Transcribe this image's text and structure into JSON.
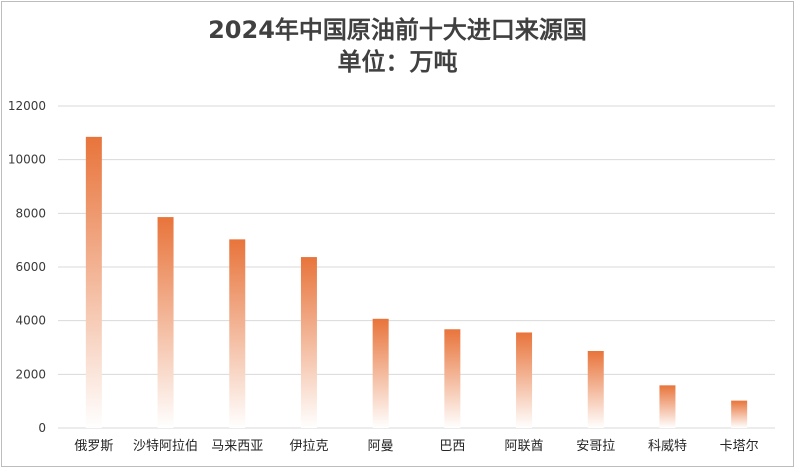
{
  "chart_data": {
    "type": "bar",
    "title": "2024年中国原油前十大进口来源国",
    "subtitle": "单位：万吨",
    "categories": [
      "俄罗斯",
      "沙特阿拉伯",
      "马来西亚",
      "伊拉克",
      "阿曼",
      "巴西",
      "阿联酋",
      "安哥拉",
      "科威特",
      "卡塔尔"
    ],
    "values": [
      10850,
      7860,
      7030,
      6370,
      4070,
      3680,
      3560,
      2870,
      1590,
      1020
    ],
    "ylim": [
      0,
      12000
    ],
    "yticks": [
      0,
      2000,
      4000,
      6000,
      8000,
      10000,
      12000
    ],
    "grid": true,
    "colors": {
      "bar_top": "#e8743b",
      "bar_bottom": "#ffffff",
      "grid": "#d9d9d9"
    }
  }
}
